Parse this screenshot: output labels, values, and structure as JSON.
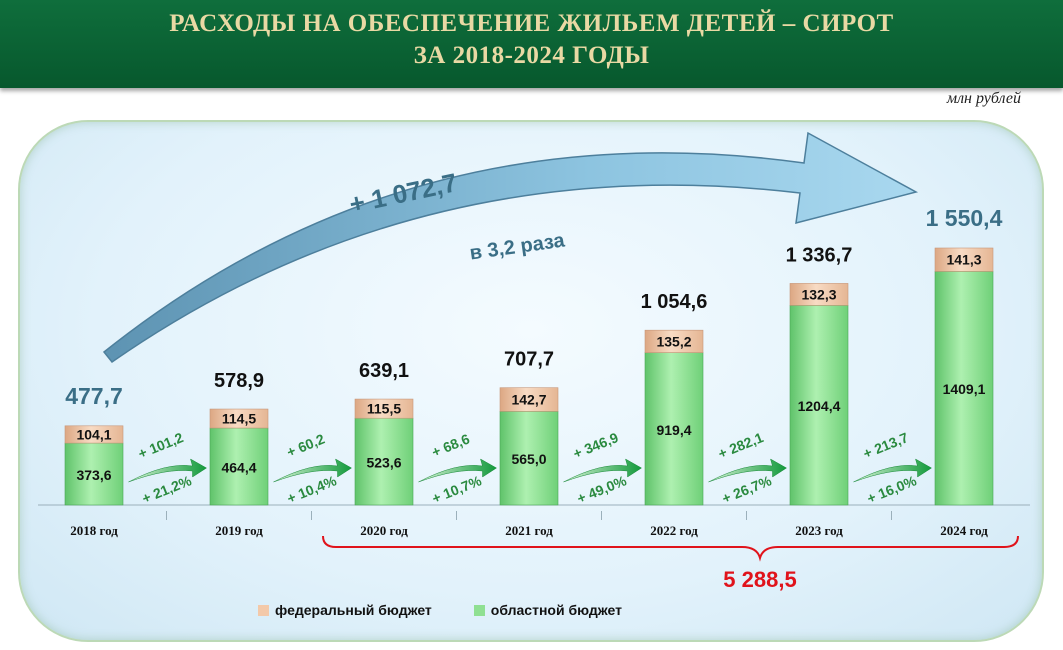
{
  "header": {
    "title_line1": "РАСХОДЫ НА ОБЕСПЕЧЕНИЕ ЖИЛЬЕМ ДЕТЕЙ – СИРОТ",
    "title_line2": "ЗА 2018-2024 ГОДЫ"
  },
  "units": "млн рублей",
  "colors": {
    "federal": "#f3c9a9",
    "regional": "#8fe092",
    "arrow_text": "#3a6e86",
    "total_sum": "#e0131b"
  },
  "chart_data": {
    "type": "bar",
    "stacked": true,
    "categories": [
      "2018 год",
      "2019 год",
      "2020 год",
      "2021 год",
      "2022 год",
      "2023 год",
      "2024 год"
    ],
    "series": [
      {
        "name": "областной бюджет",
        "values": [
          373.6,
          464.4,
          523.6,
          565.0,
          919.4,
          1204.4,
          1409.1
        ],
        "labels": [
          "373,6",
          "464,4",
          "523,6",
          "565,0",
          "919,4",
          "1204,4",
          "1409,1"
        ]
      },
      {
        "name": "федеральный бюджет",
        "values": [
          104.1,
          114.5,
          115.5,
          142.7,
          135.2,
          132.3,
          141.3
        ],
        "labels": [
          "104,1",
          "114,5",
          "115,5",
          "142,7",
          "135,2",
          "132,3",
          "141,3"
        ]
      }
    ],
    "totals": [
      477.7,
      578.9,
      639.1,
      707.7,
      1054.6,
      1336.7,
      1550.4
    ],
    "total_labels": [
      "477,7",
      "578,9",
      "639,1",
      "707,7",
      "1 054,6",
      "1 336,7",
      "1 550,4"
    ],
    "growth": [
      {
        "abs": "+ 101,2",
        "pct": "+ 21,2%"
      },
      {
        "abs": "+ 60,2",
        "pct": "+ 10,4%"
      },
      {
        "abs": "+ 68,6",
        "pct": "+ 10,7%"
      },
      {
        "abs": "+ 346,9",
        "pct": "+ 49,0%"
      },
      {
        "abs": "+ 282,1",
        "pct": "+ 26,7%"
      },
      {
        "abs": "+ 213,7",
        "pct": "+ 16,0%"
      }
    ],
    "overall_growth_abs": "+ 1 072,7",
    "overall_growth_ratio": "в 3,2 раза",
    "sum_2020_2024": "5 288,5",
    "legend": [
      "федеральный бюджет",
      "областной бюджет"
    ],
    "legend_position": "bottom",
    "ylim": [
      0,
      1600
    ],
    "grid": false
  }
}
